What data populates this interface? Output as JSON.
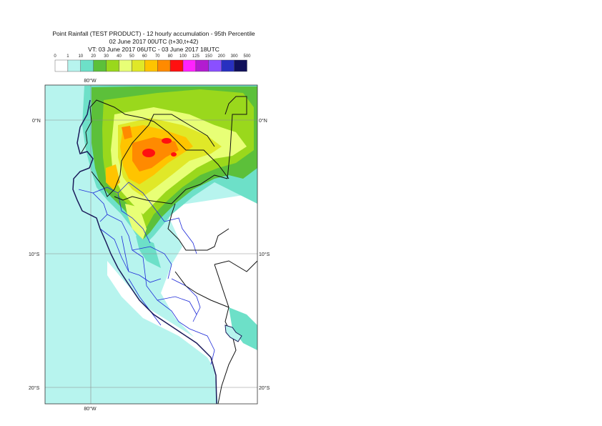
{
  "title": {
    "line1": "Point Rainfall (TEST PRODUCT) - 12 hourly accumulation - 95th Percentile",
    "line2": "02 June 2017 00UTC (t+30,t+42)",
    "line3": "VT: 03 June 2017 06UTC - 03 June 2017 18UTC"
  },
  "legend": {
    "ticks": [
      "0",
      "1",
      "10",
      "20",
      "30",
      "40",
      "50",
      "60",
      "70",
      "80",
      "100",
      "125",
      "150",
      "200",
      "300",
      "500"
    ],
    "colors": [
      "#ffffff",
      "#b7f4ee",
      "#6de0c8",
      "#5cc03a",
      "#9ad81c",
      "#e8ff76",
      "#e0e828",
      "#ffc400",
      "#ff8a00",
      "#ff1010",
      "#ff22ff",
      "#b21cd0",
      "#8a50ff",
      "#2830c0",
      "#10105a"
    ]
  },
  "map": {
    "lon_labels_top": [
      "80°W"
    ],
    "lon_labels_bottom": [
      "80°W"
    ],
    "lat_labels": [
      "0°N",
      "10°S",
      "20°S"
    ],
    "colors": {
      "land_dry": "#ffffff",
      "light": "#b7f4ee",
      "mid": "#6de0c8",
      "green": "#5cc03a",
      "lime": "#9ad81c",
      "yellow": "#e8ff76",
      "yellow2": "#e0e828",
      "orange": "#ffc400",
      "orange2": "#ff8a00",
      "red": "#ff1010",
      "coast": "#1a1a5a",
      "border_country": "#111111",
      "border_admin": "#1e2ad8",
      "grid": "#8a8a8a"
    }
  }
}
